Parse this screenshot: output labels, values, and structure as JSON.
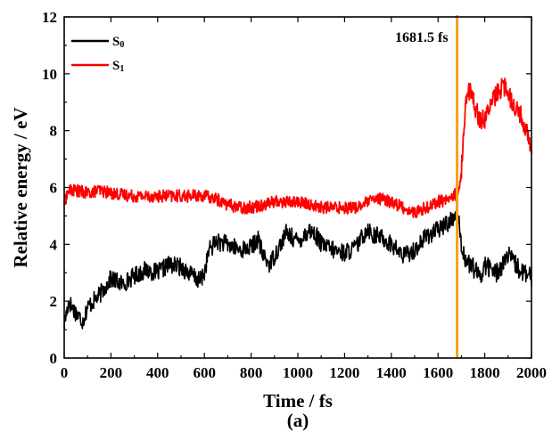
{
  "chart_data": {
    "type": "line",
    "title": "",
    "xlabel": "Time / fs",
    "ylabel": "Relative energy / eV",
    "subtitle": "(a)",
    "xlim": [
      0,
      2000
    ],
    "ylim": [
      0,
      12
    ],
    "xticks": [
      0,
      200,
      400,
      600,
      800,
      1000,
      1200,
      1400,
      1600,
      1800,
      2000
    ],
    "yticks": [
      0,
      2,
      4,
      6,
      8,
      10,
      12
    ],
    "grid": false,
    "legend_position": "top-left",
    "colors": {
      "S0": "#000000",
      "S1": "#ff0000",
      "marker": "#f5a020"
    },
    "series": [
      {
        "name": "S0",
        "legend_base": "S",
        "legend_sub": "0",
        "color": "#000000",
        "x": [
          0,
          20,
          40,
          60,
          80,
          100,
          150,
          200,
          250,
          300,
          350,
          400,
          450,
          500,
          550,
          580,
          600,
          620,
          650,
          700,
          750,
          800,
          830,
          850,
          880,
          900,
          950,
          1000,
          1050,
          1080,
          1100,
          1150,
          1200,
          1250,
          1300,
          1320,
          1350,
          1400,
          1450,
          1500,
          1550,
          1600,
          1650,
          1670,
          1681.5,
          1700,
          1720,
          1750,
          1780,
          1800,
          1850,
          1900,
          1950,
          2000
        ],
        "y": [
          1.2,
          2.0,
          1.7,
          1.5,
          1.3,
          1.8,
          2.2,
          2.8,
          2.6,
          2.9,
          3.1,
          3.0,
          3.3,
          3.2,
          2.9,
          2.7,
          3.0,
          3.8,
          4.1,
          4.0,
          3.8,
          3.9,
          4.2,
          3.6,
          3.3,
          3.6,
          4.4,
          4.1,
          4.5,
          4.3,
          4.0,
          3.8,
          3.7,
          3.9,
          4.6,
          4.3,
          4.3,
          4.0,
          3.6,
          3.8,
          4.3,
          4.5,
          4.8,
          5.0,
          5.3,
          4.0,
          3.4,
          3.2,
          2.8,
          3.3,
          3.0,
          3.6,
          3.1,
          2.8
        ]
      },
      {
        "name": "S1",
        "legend_base": "S",
        "legend_sub": "1",
        "color": "#ff0000",
        "x": [
          0,
          20,
          50,
          100,
          150,
          200,
          300,
          400,
          500,
          600,
          650,
          700,
          750,
          800,
          850,
          900,
          950,
          1000,
          1050,
          1100,
          1150,
          1200,
          1250,
          1300,
          1350,
          1400,
          1450,
          1500,
          1550,
          1600,
          1650,
          1681.5,
          1700,
          1710,
          1720,
          1740,
          1760,
          1780,
          1800,
          1830,
          1860,
          1880,
          1900,
          1920,
          1950,
          1980,
          2000
        ],
        "y": [
          5.5,
          5.9,
          5.9,
          5.8,
          5.9,
          5.8,
          5.7,
          5.7,
          5.7,
          5.7,
          5.6,
          5.4,
          5.3,
          5.3,
          5.4,
          5.5,
          5.5,
          5.5,
          5.4,
          5.3,
          5.3,
          5.3,
          5.3,
          5.5,
          5.6,
          5.5,
          5.3,
          5.1,
          5.3,
          5.5,
          5.6,
          5.8,
          6.5,
          8.0,
          9.3,
          9.4,
          8.8,
          8.4,
          8.4,
          9.0,
          9.4,
          9.6,
          9.3,
          9.0,
          8.6,
          8.0,
          7.2
        ]
      }
    ],
    "annotations": [
      {
        "type": "vline",
        "x": 1681.5,
        "color": "#f5a020",
        "label": "1681.5 fs"
      }
    ]
  }
}
